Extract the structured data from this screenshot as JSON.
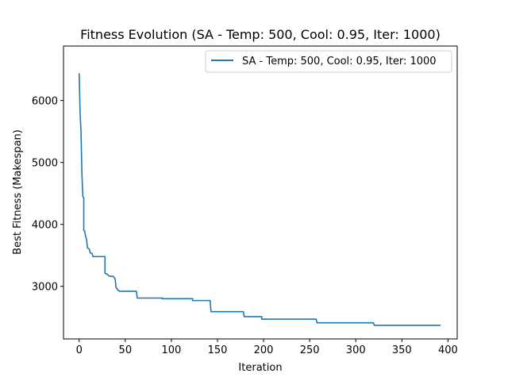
{
  "chart_data": {
    "type": "line",
    "title": "Fitness Evolution (SA - Temp: 500, Cool: 0.95, Iter: 1000)",
    "xlabel": "Iteration",
    "ylabel": "Best Fitness (Makespan)",
    "xlim": [
      -17,
      410
    ],
    "ylim": [
      2150,
      6880
    ],
    "xticks": [
      0,
      50,
      100,
      150,
      200,
      250,
      300,
      350,
      400
    ],
    "yticks": [
      3000,
      4000,
      5000,
      6000
    ],
    "grid": false,
    "legend_position": "top-right",
    "series": [
      {
        "name": "SA - Temp: 500, Cool: 0.95, Iter: 1000",
        "color": "#1f77b4",
        "points": [
          [
            0,
            6440
          ],
          [
            1,
            5800
          ],
          [
            2,
            5500
          ],
          [
            3,
            4800
          ],
          [
            4,
            4450
          ],
          [
            5,
            4430
          ],
          [
            5,
            3900
          ],
          [
            6,
            3890
          ],
          [
            7,
            3800
          ],
          [
            8,
            3760
          ],
          [
            9,
            3620
          ],
          [
            11,
            3600
          ],
          [
            12,
            3540
          ],
          [
            14,
            3530
          ],
          [
            15,
            3480
          ],
          [
            28,
            3480
          ],
          [
            28,
            3210
          ],
          [
            30,
            3200
          ],
          [
            32,
            3170
          ],
          [
            34,
            3160
          ],
          [
            37,
            3160
          ],
          [
            39,
            3120
          ],
          [
            40,
            2980
          ],
          [
            42,
            2940
          ],
          [
            44,
            2920
          ],
          [
            62,
            2920
          ],
          [
            63,
            2810
          ],
          [
            90,
            2810
          ],
          [
            90,
            2800
          ],
          [
            123,
            2800
          ],
          [
            123,
            2770
          ],
          [
            142,
            2770
          ],
          [
            143,
            2590
          ],
          [
            178,
            2590
          ],
          [
            179,
            2510
          ],
          [
            198,
            2510
          ],
          [
            198,
            2470
          ],
          [
            257,
            2470
          ],
          [
            258,
            2410
          ],
          [
            319,
            2410
          ],
          [
            320,
            2370
          ],
          [
            392,
            2370
          ]
        ]
      }
    ]
  }
}
